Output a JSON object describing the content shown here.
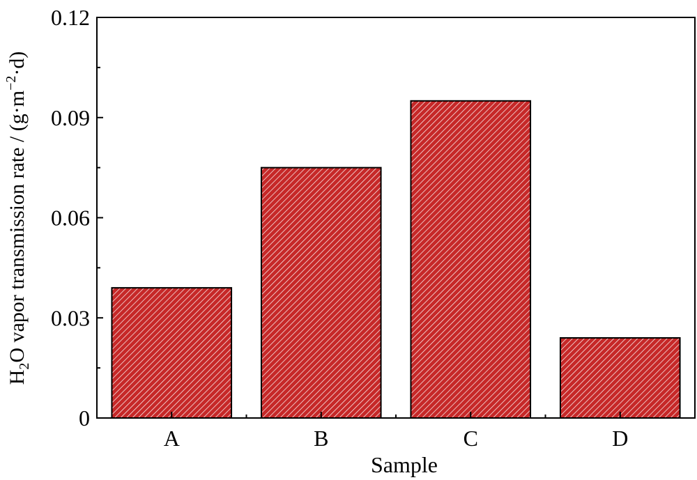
{
  "chart_data": {
    "type": "bar",
    "categories": [
      "A",
      "B",
      "C",
      "D"
    ],
    "values": [
      0.039,
      0.075,
      0.095,
      0.024
    ],
    "xlabel": "Sample",
    "ylabel": {
      "prefix": "H",
      "sub": "2",
      "middle": "O vapor transmission rate / (g·m",
      "sup": "−2",
      "suffix": "·d)"
    },
    "ylim": [
      0,
      0.12
    ],
    "yticks": [
      0,
      0.03,
      0.06,
      0.09,
      0.12
    ],
    "ytick_labels": [
      "0",
      "0.03",
      "0.06",
      "0.09",
      "0.12"
    ],
    "grid": false,
    "bar_fill": "#c62828",
    "bar_hatch": "#ffffff",
    "bar_edge": "#000000"
  }
}
